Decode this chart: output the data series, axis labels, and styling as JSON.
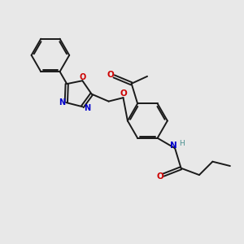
{
  "background_color": "#e8e8e8",
  "bond_color": "#1a1a1a",
  "N_color": "#0000cc",
  "O_color": "#cc0000",
  "NH_color": "#4a9090",
  "fig_width": 3.0,
  "fig_height": 3.0,
  "dpi": 100,
  "lw": 1.4,
  "xlim": [
    0,
    10
  ],
  "ylim": [
    0,
    10
  ]
}
